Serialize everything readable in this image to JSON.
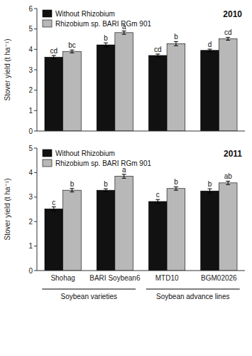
{
  "chart_data": [
    {
      "type": "bar",
      "title": "2010",
      "ylabel": "Stover yield (t ha⁻¹)",
      "categories": [
        "Shohag",
        "BARI Soybean6",
        "MTD10",
        "BGM02026"
      ],
      "series": [
        {
          "name": "Without Rhizobium",
          "color": "#111111",
          "values": [
            3.62,
            4.22,
            3.7,
            3.95
          ],
          "errors": [
            0.08,
            0.1,
            0.07,
            0.06
          ],
          "annotations": [
            "cd",
            "b",
            "cd",
            "d"
          ]
        },
        {
          "name": "Rhizobium sp. BARI RGm 901",
          "color": "#b8b8b8",
          "values": [
            3.9,
            4.82,
            4.28,
            4.52
          ],
          "errors": [
            0.07,
            0.08,
            0.1,
            0.07
          ],
          "annotations": [
            "bc",
            "a",
            "b",
            "cd"
          ]
        }
      ],
      "ylim": [
        0,
        6
      ],
      "yticks": [
        0,
        1,
        2,
        3,
        4,
        5,
        6
      ],
      "grid": false,
      "legend": "upper left",
      "tick_labels": "y"
    },
    {
      "type": "bar",
      "title": "2011",
      "ylabel": "Stover yield (t ha⁻¹)",
      "categories": [
        "Shohag",
        "BARI Soybean6",
        "MTD10",
        "BGM02026"
      ],
      "series": [
        {
          "name": "Without Rhizobium",
          "color": "#111111",
          "values": [
            2.52,
            3.28,
            2.82,
            3.25
          ],
          "errors": [
            0.08,
            0.06,
            0.08,
            0.09
          ],
          "annotations": [
            "c",
            "b",
            "c",
            "b"
          ]
        },
        {
          "name": "Rhizobium sp. BARI RGm 901",
          "color": "#b8b8b8",
          "values": [
            3.28,
            3.85,
            3.35,
            3.58
          ],
          "errors": [
            0.07,
            0.08,
            0.07,
            0.07
          ],
          "annotations": [
            "b",
            "a",
            "b",
            "ab"
          ]
        }
      ],
      "ylim": [
        0,
        5
      ],
      "yticks": [
        0,
        1,
        2,
        3,
        4,
        5
      ],
      "grid": false,
      "legend": "upper left",
      "tick_labels": true,
      "annotations": [
        {
          "text": "Soybean varieties",
          "from": "Shohag",
          "to": "BARI Soybean6"
        },
        {
          "text": "Soybean advance lines",
          "from": "MTD10",
          "to": "BGM02026"
        }
      ]
    }
  ]
}
